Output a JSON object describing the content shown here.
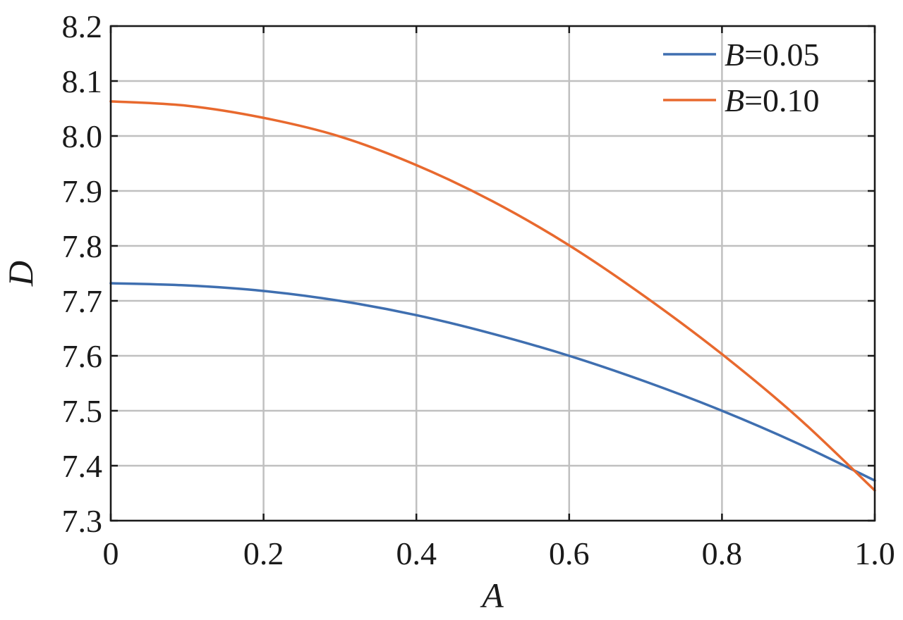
{
  "chart_data": {
    "type": "line",
    "title": "",
    "xlabel": "A",
    "ylabel": "D",
    "xlim": [
      0,
      1.0
    ],
    "ylim": [
      7.3,
      8.2
    ],
    "x_ticks": [
      "0",
      "0.2",
      "0.4",
      "0.6",
      "0.8",
      "1.0"
    ],
    "y_ticks": [
      "7.3",
      "7.4",
      "7.5",
      "7.6",
      "7.7",
      "7.8",
      "7.9",
      "8.0",
      "8.1",
      "8.2"
    ],
    "x_tick_values": [
      0,
      0.2,
      0.4,
      0.6,
      0.8,
      1.0
    ],
    "y_tick_values": [
      7.3,
      7.4,
      7.5,
      7.6,
      7.7,
      7.8,
      7.9,
      8.0,
      8.1,
      8.2
    ],
    "grid": true,
    "legend_position": "top-right",
    "x": [
      0,
      0.1,
      0.2,
      0.3,
      0.4,
      0.5,
      0.6,
      0.7,
      0.8,
      0.9,
      1.0
    ],
    "series": [
      {
        "name": "B=0.05",
        "legend_var": "B",
        "legend_value": "=0.05",
        "color": "#3f6fb0",
        "values": [
          7.732,
          7.728,
          7.718,
          7.7,
          7.674,
          7.64,
          7.6,
          7.553,
          7.5,
          7.44,
          7.373
        ]
      },
      {
        "name": "B=0.10",
        "legend_var": "B",
        "legend_value": "=0.10",
        "color": "#e8692e",
        "values": [
          8.063,
          8.055,
          8.033,
          7.999,
          7.947,
          7.881,
          7.801,
          7.707,
          7.603,
          7.487,
          7.355
        ]
      }
    ]
  }
}
